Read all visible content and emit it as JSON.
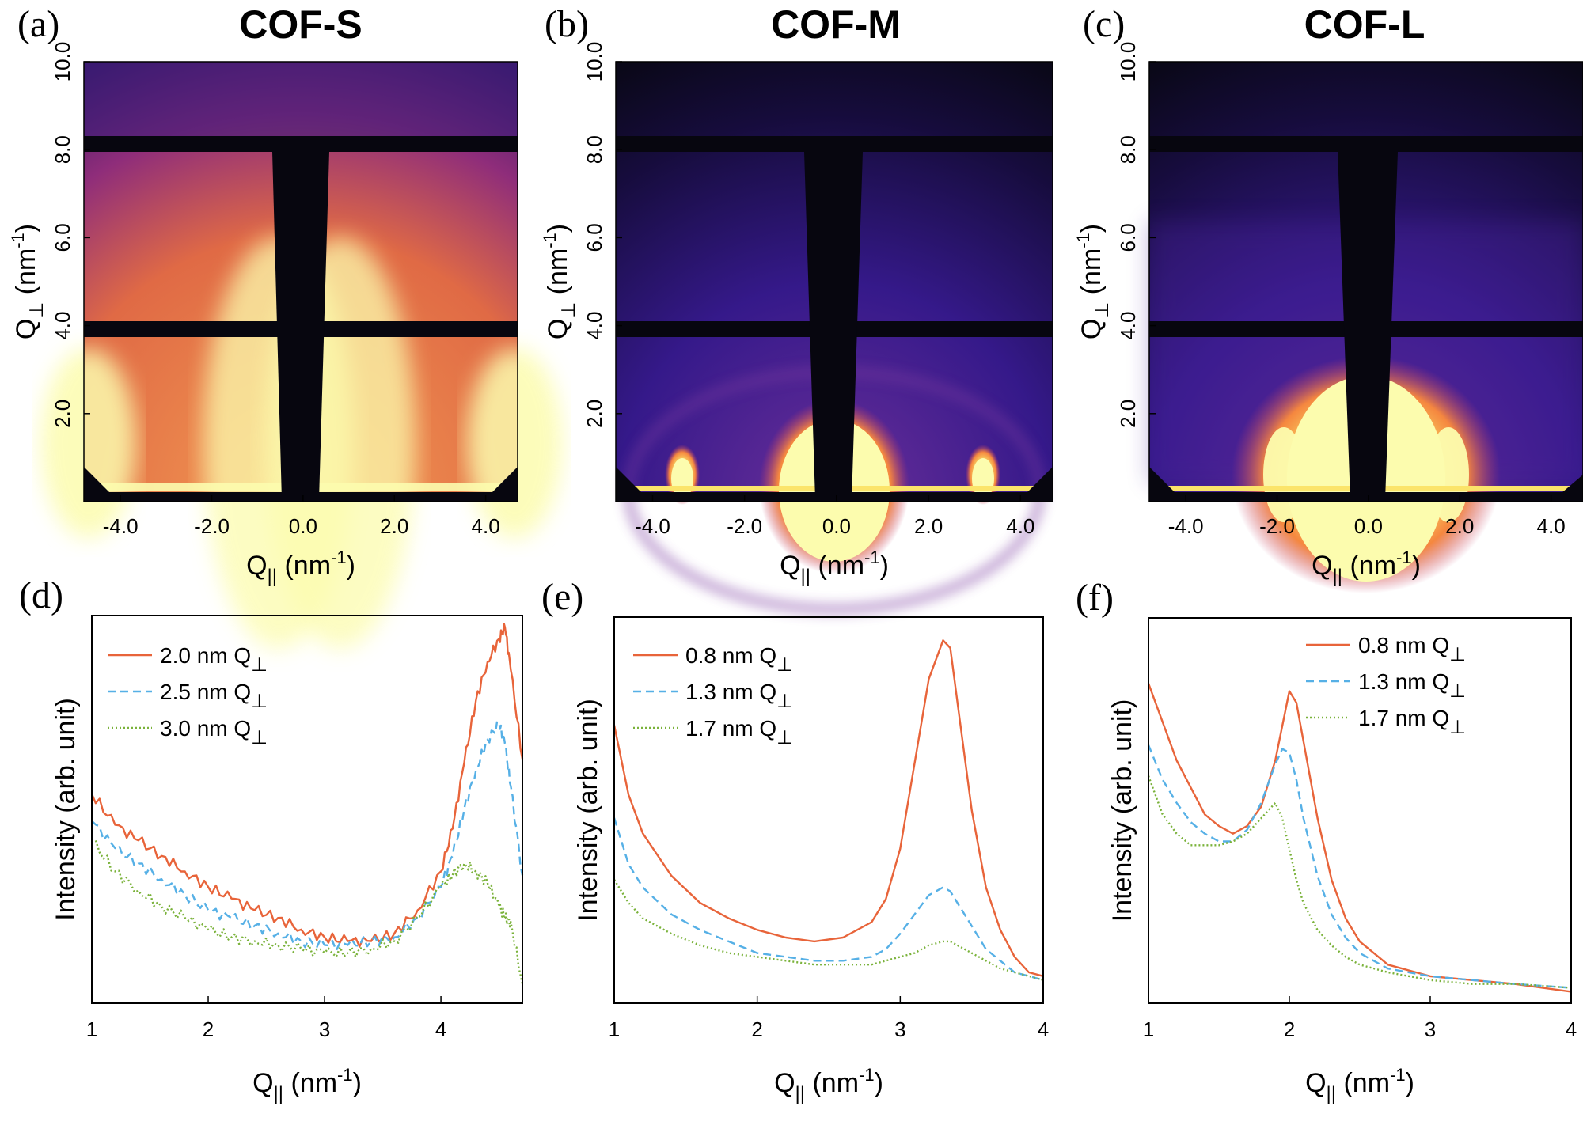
{
  "colors": {
    "series_solid": "#e8643a",
    "series_dashed": "#56b0e6",
    "series_dotted": "#7ab23a",
    "map_low": "#06040e",
    "map_high": "#fcfcae"
  },
  "panels_top": [
    {
      "letter": "(a)",
      "title": "COF-S",
      "xlabel_sym": "Q",
      "xlabel_sub": "||",
      "xlabel_unit": " (nm",
      "xlabel_sup": "-1",
      "xlabel_end": ")",
      "ylabel_sym": "Q",
      "ylabel_sub": "⊥",
      "ylabel_unit": " (nm",
      "ylabel_sup": "-1",
      "ylabel_end": ")",
      "x_ticks": [
        "-4.0",
        "-2.0",
        "0.0",
        "2.0",
        "4.0"
      ],
      "y_ticks": [
        "2.0",
        "4.0",
        "6.0",
        "8.0",
        "10.0"
      ]
    },
    {
      "letter": "(b)",
      "title": "COF-M",
      "xlabel_sym": "Q",
      "xlabel_sub": "||",
      "xlabel_unit": " (nm",
      "xlabel_sup": "-1",
      "xlabel_end": ")",
      "ylabel_sym": "Q",
      "ylabel_sub": "⊥",
      "ylabel_unit": " (nm",
      "ylabel_sup": "-1",
      "ylabel_end": ")",
      "x_ticks": [
        "-4.0",
        "-2.0",
        "0.0",
        "2.0",
        "4.0"
      ],
      "y_ticks": [
        "2.0",
        "4.0",
        "6.0",
        "8.0",
        "10.0"
      ]
    },
    {
      "letter": "(c)",
      "title": "COF-L",
      "xlabel_sym": "Q",
      "xlabel_sub": "||",
      "xlabel_unit": " (nm",
      "xlabel_sup": "-1",
      "xlabel_end": ")",
      "ylabel_sym": "Q",
      "ylabel_sub": "⊥",
      "ylabel_unit": " (nm",
      "ylabel_sup": "-1",
      "ylabel_end": ")",
      "x_ticks": [
        "-4.0",
        "-2.0",
        "0.0",
        "2.0",
        "4.0"
      ],
      "y_ticks": [
        "2.0",
        "4.0",
        "6.0",
        "8.0",
        "10.0"
      ]
    }
  ],
  "panels_bottom": [
    {
      "letter": "(d)",
      "ylabel": "Intensity (arb. unit)",
      "xlabel_sym": "Q",
      "xlabel_sub": "||",
      "xlabel_unit": " (nm",
      "xlabel_sup": "-1",
      "xlabel_end": ")",
      "x_ticks": [
        "1",
        "2",
        "3",
        "4"
      ],
      "legend": [
        {
          "text": "2.0 nm Q",
          "sub": "⊥"
        },
        {
          "text": "2.5 nm Q",
          "sub": "⊥"
        },
        {
          "text": "3.0 nm Q",
          "sub": "⊥"
        }
      ]
    },
    {
      "letter": "(e)",
      "ylabel": "Intensity (arb. unit)",
      "xlabel_sym": "Q",
      "xlabel_sub": "||",
      "xlabel_unit": " (nm",
      "xlabel_sup": "-1",
      "xlabel_end": ")",
      "x_ticks": [
        "1",
        "2",
        "3",
        "4"
      ],
      "legend": [
        {
          "text": "0.8 nm Q",
          "sub": "⊥"
        },
        {
          "text": "1.3 nm Q",
          "sub": "⊥"
        },
        {
          "text": "1.7 nm Q",
          "sub": "⊥"
        }
      ]
    },
    {
      "letter": "(f)",
      "ylabel": "Intensity (arb. unit)",
      "xlabel_sym": "Q",
      "xlabel_sub": "||",
      "xlabel_unit": " (nm",
      "xlabel_sup": "-1",
      "xlabel_end": ")",
      "x_ticks": [
        "1",
        "2",
        "3",
        "4"
      ],
      "legend": [
        {
          "text": "0.8 nm Q",
          "sub": "⊥"
        },
        {
          "text": "1.3 nm Q",
          "sub": "⊥"
        },
        {
          "text": "1.7 nm Q",
          "sub": "⊥"
        }
      ]
    }
  ],
  "chart_data": [
    {
      "type": "heatmap",
      "panel": "a",
      "title": "COF-S",
      "xlim": [
        -4.8,
        4.7
      ],
      "ylim": [
        0.0,
        10.0
      ],
      "detector_gaps_y": [
        [
          8.05,
          8.35
        ],
        [
          4.0,
          4.3
        ]
      ],
      "features": [
        {
          "kind": "vertical streak",
          "x": 0.0,
          "intensity": "high"
        },
        {
          "kind": "edge peak",
          "x": -4.3,
          "intensity": "high"
        },
        {
          "kind": "edge peak",
          "x": 4.3,
          "intensity": "high"
        }
      ]
    },
    {
      "type": "heatmap",
      "panel": "b",
      "title": "COF-M",
      "xlim": [
        -4.8,
        4.7
      ],
      "ylim": [
        0.0,
        10.0
      ],
      "detector_gaps_y": [
        [
          8.05,
          8.35
        ],
        [
          4.0,
          4.3
        ]
      ],
      "features": [
        {
          "kind": "central dome",
          "x": 0.0,
          "intensity": "high"
        },
        {
          "kind": "peak",
          "x": -3.3,
          "intensity": "high"
        },
        {
          "kind": "peak",
          "x": 3.3,
          "intensity": "high"
        }
      ]
    },
    {
      "type": "heatmap",
      "panel": "c",
      "title": "COF-L",
      "xlim": [
        -4.8,
        4.7
      ],
      "ylim": [
        0.0,
        10.0
      ],
      "detector_gaps_y": [
        [
          8.05,
          8.35
        ],
        [
          4.0,
          4.3
        ]
      ],
      "features": [
        {
          "kind": "central dome",
          "x": 0.0,
          "intensity": "high"
        },
        {
          "kind": "peak",
          "x": -2.0,
          "intensity": "high"
        },
        {
          "kind": "peak",
          "x": 2.0,
          "intensity": "high"
        }
      ]
    },
    {
      "type": "line",
      "panel": "d",
      "xlabel": "Q|| (nm-1)",
      "ylabel": "Intensity (arb. unit)",
      "xlim": [
        1,
        4.7
      ],
      "ylim": [
        0,
        1
      ],
      "series": [
        {
          "name": "2.0 nm Q⊥",
          "style": "solid",
          "x": [
            1.0,
            1.2,
            1.4,
            1.6,
            1.8,
            2.0,
            2.2,
            2.4,
            2.6,
            2.8,
            3.0,
            3.2,
            3.4,
            3.6,
            3.8,
            4.0,
            4.1,
            4.2,
            4.3,
            4.4,
            4.5,
            4.55,
            4.6,
            4.7
          ],
          "y": [
            0.54,
            0.46,
            0.42,
            0.38,
            0.34,
            0.3,
            0.27,
            0.24,
            0.22,
            0.19,
            0.17,
            0.16,
            0.16,
            0.18,
            0.24,
            0.34,
            0.45,
            0.62,
            0.78,
            0.88,
            0.94,
            0.97,
            0.86,
            0.63
          ]
        },
        {
          "name": "2.5 nm Q⊥",
          "style": "dashed",
          "x": [
            1.0,
            1.2,
            1.4,
            1.6,
            1.8,
            2.0,
            2.2,
            2.4,
            2.6,
            2.8,
            3.0,
            3.2,
            3.4,
            3.6,
            3.8,
            4.0,
            4.1,
            4.2,
            4.3,
            4.4,
            4.5,
            4.55,
            4.6,
            4.7
          ],
          "y": [
            0.47,
            0.4,
            0.36,
            0.32,
            0.28,
            0.24,
            0.22,
            0.2,
            0.18,
            0.16,
            0.15,
            0.15,
            0.16,
            0.17,
            0.22,
            0.3,
            0.38,
            0.5,
            0.6,
            0.68,
            0.72,
            0.67,
            0.56,
            0.33
          ]
        },
        {
          "name": "3.0 nm Q⊥",
          "style": "dotted",
          "x": [
            1.0,
            1.2,
            1.4,
            1.6,
            1.8,
            2.0,
            2.2,
            2.4,
            2.6,
            2.8,
            3.0,
            3.2,
            3.4,
            3.6,
            3.8,
            4.0,
            4.1,
            4.2,
            4.3,
            4.4,
            4.5,
            4.55,
            4.6,
            4.7
          ],
          "y": [
            0.42,
            0.34,
            0.29,
            0.25,
            0.22,
            0.19,
            0.17,
            0.16,
            0.15,
            0.14,
            0.13,
            0.13,
            0.14,
            0.16,
            0.22,
            0.3,
            0.33,
            0.36,
            0.34,
            0.31,
            0.25,
            0.22,
            0.21,
            0.05
          ]
        }
      ]
    },
    {
      "type": "line",
      "panel": "e",
      "xlabel": "Q|| (nm-1)",
      "ylabel": "Intensity (arb. unit)",
      "xlim": [
        1,
        4
      ],
      "ylim": [
        0,
        1
      ],
      "series": [
        {
          "name": "0.8 nm Q⊥",
          "style": "solid",
          "x": [
            1.0,
            1.1,
            1.2,
            1.4,
            1.6,
            1.8,
            2.0,
            2.2,
            2.4,
            2.6,
            2.8,
            2.9,
            3.0,
            3.1,
            3.2,
            3.3,
            3.35,
            3.4,
            3.5,
            3.6,
            3.7,
            3.8,
            3.9,
            4.0
          ],
          "y": [
            0.72,
            0.54,
            0.44,
            0.33,
            0.26,
            0.22,
            0.19,
            0.17,
            0.16,
            0.17,
            0.21,
            0.27,
            0.4,
            0.62,
            0.84,
            0.94,
            0.92,
            0.78,
            0.5,
            0.3,
            0.19,
            0.12,
            0.08,
            0.07
          ]
        },
        {
          "name": "1.3 nm Q⊥",
          "style": "dashed",
          "x": [
            1.0,
            1.1,
            1.2,
            1.4,
            1.6,
            1.8,
            2.0,
            2.2,
            2.4,
            2.6,
            2.8,
            2.9,
            3.0,
            3.1,
            3.2,
            3.3,
            3.35,
            3.4,
            3.5,
            3.6,
            3.7,
            3.8,
            3.9,
            4.0
          ],
          "y": [
            0.48,
            0.36,
            0.3,
            0.23,
            0.19,
            0.16,
            0.13,
            0.12,
            0.11,
            0.11,
            0.12,
            0.14,
            0.18,
            0.23,
            0.28,
            0.3,
            0.29,
            0.26,
            0.2,
            0.14,
            0.11,
            0.08,
            0.07,
            0.06
          ]
        },
        {
          "name": "1.7 nm Q⊥",
          "style": "dotted",
          "x": [
            1.0,
            1.1,
            1.2,
            1.4,
            1.6,
            1.8,
            2.0,
            2.2,
            2.4,
            2.6,
            2.8,
            2.9,
            3.0,
            3.1,
            3.2,
            3.3,
            3.35,
            3.4,
            3.5,
            3.6,
            3.7,
            3.8,
            3.9,
            4.0
          ],
          "y": [
            0.32,
            0.26,
            0.22,
            0.18,
            0.15,
            0.13,
            0.12,
            0.11,
            0.1,
            0.1,
            0.1,
            0.11,
            0.12,
            0.13,
            0.15,
            0.16,
            0.16,
            0.15,
            0.13,
            0.11,
            0.09,
            0.08,
            0.07,
            0.06
          ]
        }
      ]
    },
    {
      "type": "line",
      "panel": "f",
      "xlabel": "Q|| (nm-1)",
      "ylabel": "Intensity (arb. unit)",
      "xlim": [
        1,
        4
      ],
      "ylim": [
        0,
        1
      ],
      "series": [
        {
          "name": "0.8 nm Q⊥",
          "style": "solid",
          "x": [
            1.0,
            1.1,
            1.2,
            1.3,
            1.4,
            1.5,
            1.6,
            1.7,
            1.8,
            1.9,
            1.95,
            2.0,
            2.05,
            2.1,
            2.2,
            2.3,
            2.4,
            2.5,
            2.7,
            3.0,
            3.3,
            3.6,
            4.0
          ],
          "y": [
            0.83,
            0.73,
            0.63,
            0.56,
            0.49,
            0.46,
            0.44,
            0.46,
            0.51,
            0.63,
            0.72,
            0.81,
            0.78,
            0.68,
            0.48,
            0.32,
            0.22,
            0.16,
            0.1,
            0.07,
            0.06,
            0.05,
            0.03
          ]
        },
        {
          "name": "1.3 nm Q⊥",
          "style": "dashed",
          "x": [
            1.0,
            1.1,
            1.2,
            1.3,
            1.4,
            1.5,
            1.6,
            1.7,
            1.8,
            1.9,
            1.95,
            2.0,
            2.05,
            2.1,
            2.2,
            2.3,
            2.4,
            2.5,
            2.7,
            3.0,
            3.3,
            3.6,
            4.0
          ],
          "y": [
            0.67,
            0.58,
            0.52,
            0.47,
            0.44,
            0.42,
            0.42,
            0.45,
            0.52,
            0.62,
            0.66,
            0.65,
            0.58,
            0.48,
            0.33,
            0.23,
            0.17,
            0.13,
            0.09,
            0.07,
            0.06,
            0.05,
            0.04
          ]
        },
        {
          "name": "1.7 nm Q⊥",
          "style": "dotted",
          "x": [
            1.0,
            1.1,
            1.2,
            1.3,
            1.4,
            1.5,
            1.6,
            1.7,
            1.8,
            1.9,
            1.95,
            2.0,
            2.05,
            2.1,
            2.2,
            2.3,
            2.4,
            2.5,
            2.7,
            3.0,
            3.3,
            3.6,
            4.0
          ],
          "y": [
            0.59,
            0.49,
            0.44,
            0.41,
            0.41,
            0.41,
            0.42,
            0.44,
            0.48,
            0.52,
            0.48,
            0.4,
            0.32,
            0.26,
            0.19,
            0.15,
            0.12,
            0.1,
            0.08,
            0.06,
            0.05,
            0.05,
            0.04
          ]
        }
      ]
    }
  ]
}
